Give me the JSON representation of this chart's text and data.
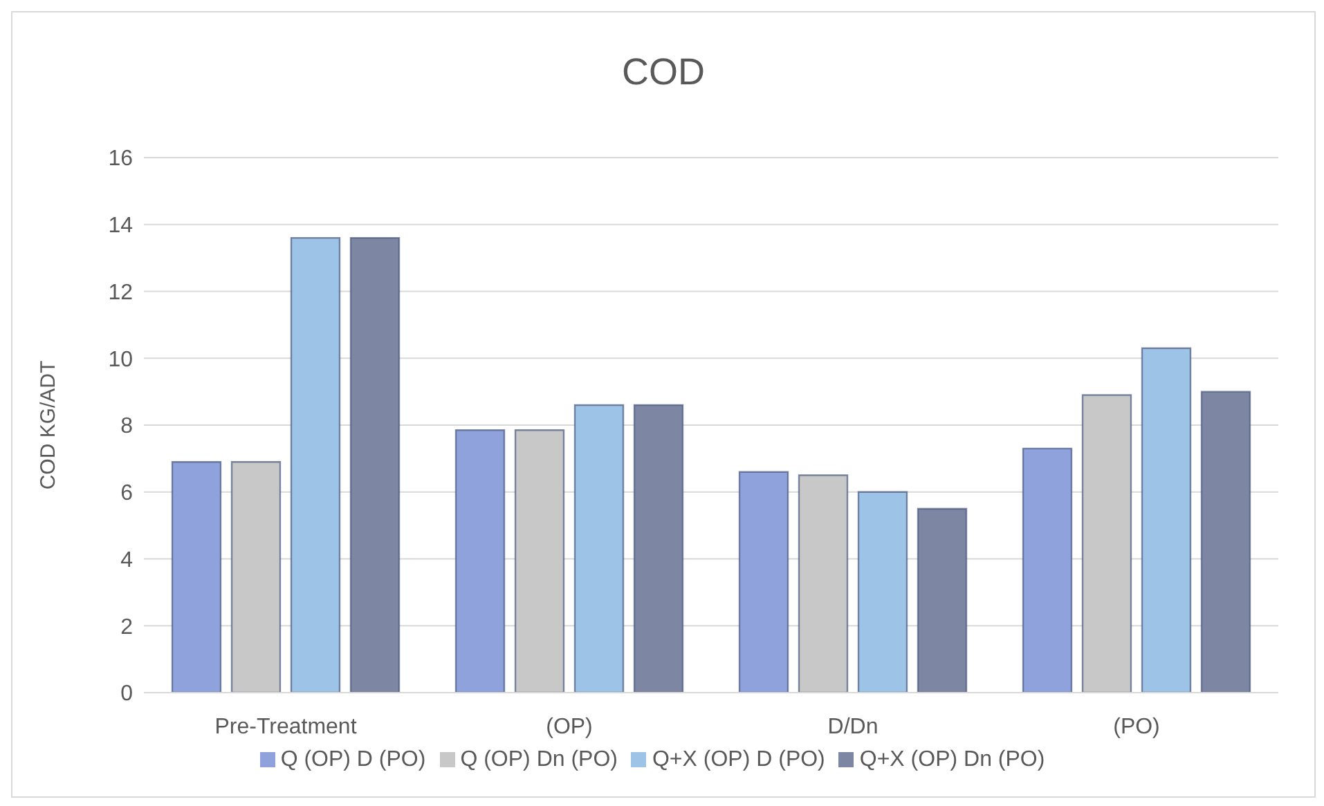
{
  "chart_data": {
    "type": "bar",
    "title": "COD",
    "ylabel": "COD KG/ADT",
    "categories": [
      "Pre-Treatment",
      "(OP)",
      "D/Dn",
      "(PO)"
    ],
    "series": [
      {
        "name": "Q (OP) D (PO)",
        "color": "#8fa2dc",
        "values": [
          6.9,
          7.85,
          6.6,
          7.3
        ]
      },
      {
        "name": "Q (OP) Dn (PO)",
        "color": "#c8c8c8",
        "values": [
          6.9,
          7.85,
          6.5,
          8.9
        ]
      },
      {
        "name": "Q+X (OP) D (PO)",
        "color": "#9dc3e6",
        "values": [
          13.6,
          8.6,
          6.0,
          10.3
        ]
      },
      {
        "name": "Q+X (OP) Dn (PO)",
        "color": "#7d86a3",
        "values": [
          13.6,
          8.6,
          5.5,
          9.0
        ]
      }
    ],
    "ylim": [
      0,
      16
    ],
    "yticks": [
      0,
      2,
      4,
      6,
      8,
      10,
      12,
      14,
      16
    ],
    "grid": "y",
    "legend": "bottom"
  }
}
